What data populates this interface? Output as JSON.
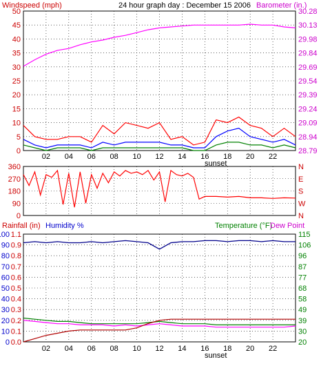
{
  "colors": {
    "wind": "#ff0000",
    "gust": "#ff0000",
    "avg": "#0000ff",
    "green": "#008000",
    "baro": "#ff00ff",
    "dir": "#ff0000",
    "humidity": "#00008b",
    "temp": "#008000",
    "dew": "#ff00ff",
    "rain": "#b00000",
    "grid": "#000000",
    "axis_red": "#cc0000",
    "axis_blue": "#0000cc",
    "axis_green": "#008000",
    "axis_magenta": "#cc00cc"
  },
  "header": {
    "wind_label": "Windspeed (mph)",
    "title": "24 hour graph day : December 15 2006",
    "baro_label": "Barometer (in.)"
  },
  "labels": {
    "sunset": "sunset",
    "rain_label": "Rainfall (in)",
    "humidity_label": "Humidity %",
    "temp_label": "Temperature (°F)",
    "dew_label": "Dew Point"
  },
  "x_ticks": [
    "02",
    "04",
    "06",
    "08",
    "10",
    "12",
    "14",
    "16",
    "18",
    "20",
    "22"
  ],
  "chart_data": [
    {
      "type": "line",
      "name": "wind_barometer",
      "x_unit": "hour",
      "xlim": [
        0,
        24
      ],
      "y_left_ticks": [
        "0",
        "5",
        "10",
        "15",
        "20",
        "25",
        "30",
        "35",
        "40",
        "45",
        "50"
      ],
      "ylim_left": [
        0,
        50
      ],
      "y_right_ticks": [
        "28.79",
        "28.94",
        "29.09",
        "29.24",
        "29.39",
        "29.54",
        "29.69",
        "29.84",
        "29.98",
        "30.13",
        "30.28"
      ],
      "ylim_right": [
        28.79,
        30.28
      ],
      "barometer": {
        "x": [
          0,
          1,
          2,
          3,
          4,
          5,
          6,
          7,
          8,
          9,
          10,
          11,
          12,
          13,
          14,
          15,
          16,
          17,
          18,
          19,
          20,
          21,
          22,
          23,
          24
        ],
        "y": [
          29.69,
          29.76,
          29.82,
          29.86,
          29.88,
          29.92,
          29.95,
          29.97,
          30.0,
          30.02,
          30.05,
          30.08,
          30.1,
          30.11,
          30.12,
          30.13,
          30.13,
          30.13,
          30.13,
          30.13,
          30.14,
          30.13,
          30.13,
          30.11,
          30.1
        ]
      },
      "gust": {
        "x": [
          0,
          1,
          2,
          3,
          4,
          5,
          6,
          7,
          8,
          9,
          10,
          11,
          12,
          13,
          14,
          15,
          16,
          17,
          18,
          19,
          20,
          21,
          22,
          23,
          24
        ],
        "y": [
          9,
          5,
          4,
          4,
          5,
          5,
          3,
          9,
          6,
          10,
          9,
          8,
          10,
          4,
          5,
          2,
          3,
          11,
          10,
          12,
          9,
          8,
          5,
          8,
          5
        ]
      },
      "average": {
        "x": [
          0,
          1,
          2,
          3,
          4,
          5,
          6,
          7,
          8,
          9,
          10,
          11,
          12,
          13,
          14,
          15,
          16,
          17,
          18,
          19,
          20,
          21,
          22,
          23,
          24
        ],
        "y": [
          4,
          2,
          1,
          2,
          2,
          2,
          1,
          3,
          2,
          3,
          3,
          3,
          3,
          2,
          2,
          1,
          1,
          5,
          7,
          8,
          5,
          4,
          3,
          4,
          2
        ]
      },
      "low": {
        "x": [
          0,
          1,
          2,
          3,
          4,
          5,
          6,
          7,
          8,
          9,
          10,
          11,
          12,
          13,
          14,
          15,
          16,
          17,
          18,
          19,
          20,
          21,
          22,
          23,
          24
        ],
        "y": [
          2,
          1,
          0,
          1,
          1,
          1,
          0,
          1,
          1,
          1,
          1,
          1,
          1,
          1,
          1,
          0,
          0,
          2,
          3,
          3,
          2,
          2,
          1,
          2,
          1
        ]
      }
    },
    {
      "type": "line",
      "name": "wind_direction",
      "xlim": [
        0,
        24
      ],
      "y_left_ticks": [
        "0",
        "90",
        "180",
        "270",
        "360"
      ],
      "ylim_left": [
        0,
        360
      ],
      "y_right_ticks": [
        "N",
        "W",
        "S",
        "E",
        "N"
      ],
      "direction": {
        "x": [
          0,
          0.5,
          1,
          1.5,
          2,
          2.5,
          3,
          3.5,
          4,
          4.5,
          5,
          5.5,
          6,
          6.5,
          7,
          7.5,
          8,
          8.5,
          9,
          9.5,
          10,
          10.5,
          11,
          11.5,
          12,
          12.5,
          13,
          13.5,
          14,
          14.5,
          15,
          15.5,
          16,
          17,
          18,
          19,
          20,
          21,
          22,
          23,
          24
        ],
        "y": [
          300,
          220,
          320,
          150,
          300,
          280,
          330,
          80,
          310,
          60,
          320,
          90,
          300,
          200,
          310,
          240,
          320,
          290,
          330,
          310,
          320,
          300,
          330,
          260,
          320,
          100,
          330,
          300,
          290,
          310,
          280,
          120,
          140,
          140,
          135,
          140,
          130,
          130,
          125,
          130,
          128
        ]
      }
    },
    {
      "type": "line",
      "name": "rain_humidity_temperature",
      "xlim": [
        0,
        24
      ],
      "y_left_ticks": [
        "0",
        "10",
        "20",
        "30",
        "40",
        "50",
        "60",
        "70",
        "80",
        "90",
        "100"
      ],
      "ylim_left": [
        0,
        100
      ],
      "y_rain_ticks": [
        "0.0",
        "0.1",
        "0.2",
        "0.3",
        "0.4",
        "0.5",
        "0.6",
        "0.7",
        "0.8",
        "0.9",
        "1.1"
      ],
      "y_right_ticks": [
        "20",
        "30",
        "39",
        "49",
        "58",
        "68",
        "77",
        "87",
        "96",
        "106",
        "115"
      ],
      "ylim_right": [
        20,
        115
      ],
      "humidity": {
        "x": [
          0,
          1,
          2,
          3,
          4,
          5,
          6,
          7,
          8,
          9,
          10,
          11,
          12,
          13,
          14,
          15,
          16,
          17,
          18,
          19,
          20,
          21,
          22,
          23,
          24
        ],
        "y": [
          92,
          93,
          92,
          93,
          92,
          92,
          93,
          92,
          93,
          94,
          93,
          92,
          86,
          92,
          93,
          93,
          94,
          94,
          93,
          94,
          94,
          93,
          94,
          93,
          93
        ]
      },
      "temperature": {
        "x": [
          0,
          1,
          2,
          3,
          4,
          5,
          6,
          7,
          8,
          9,
          10,
          11,
          12,
          13,
          14,
          15,
          16,
          17,
          18,
          19,
          20,
          21,
          22,
          23,
          24
        ],
        "y": [
          41,
          40,
          39,
          38,
          38,
          37,
          36,
          36,
          36,
          36,
          36,
          37,
          38,
          37,
          36,
          36,
          36,
          35,
          35,
          35,
          35,
          35,
          35,
          35,
          35
        ]
      },
      "dew_point": {
        "x": [
          0,
          1,
          2,
          3,
          4,
          5,
          6,
          7,
          8,
          9,
          10,
          11,
          12,
          13,
          14,
          15,
          16,
          17,
          18,
          19,
          20,
          21,
          22,
          23,
          24
        ],
        "y": [
          39,
          38,
          37,
          36,
          36,
          35,
          35,
          35,
          34,
          35,
          34,
          35,
          36,
          35,
          34,
          34,
          34,
          33,
          33,
          33,
          33,
          33,
          33,
          33,
          34
        ]
      },
      "rainfall": {
        "x": [
          0,
          1,
          2,
          3,
          4,
          5,
          6,
          7,
          8,
          9,
          10,
          11,
          12,
          13,
          14,
          15,
          16,
          17,
          18,
          19,
          20,
          21,
          22,
          23,
          24
        ],
        "y": [
          0.0,
          0.03,
          0.06,
          0.08,
          0.1,
          0.11,
          0.11,
          0.11,
          0.11,
          0.11,
          0.13,
          0.17,
          0.2,
          0.21,
          0.21,
          0.21,
          0.21,
          0.21,
          0.21,
          0.21,
          0.21,
          0.21,
          0.21,
          0.21,
          0.21
        ]
      }
    }
  ]
}
